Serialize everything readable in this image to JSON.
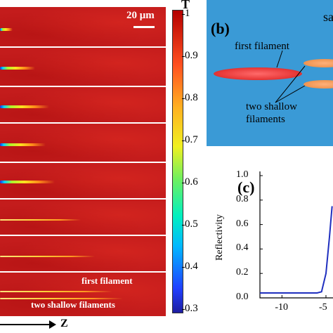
{
  "panel_a": {
    "scale_bar": "20 μm",
    "annotation_first": "first filament",
    "annotation_shallow": "two shallow filaments",
    "axis_label": "Z",
    "colorbar_title": "T",
    "colorbar_ticks": [
      "1",
      "0.9",
      "0.8",
      "0.7",
      "0.6",
      "0.5",
      "0.4",
      "0.3"
    ]
  },
  "panel_b": {
    "label": "(b)",
    "corner_text": "sa",
    "first_filament": "first filament",
    "two_shallow_line1": "two shallow",
    "two_shallow_line2": "filaments"
  },
  "panel_c": {
    "label": "(c)",
    "ylabel": "Reflectivity",
    "yticks": [
      "1.0",
      "0.8",
      "0.6",
      "0.4",
      "0.2",
      "0.0"
    ],
    "xticks": [
      "-10",
      "-5"
    ]
  },
  "chart_data": {
    "type": "line",
    "ylabel": "Reflectivity",
    "ylim": [
      0.0,
      1.0
    ],
    "series": [
      {
        "x": [
          -12.5,
          -10,
          -8,
          -6,
          -5.5,
          -5,
          -4.6,
          -4.3
        ],
        "y": [
          0.04,
          0.04,
          0.04,
          0.04,
          0.05,
          0.2,
          0.5,
          0.75
        ]
      }
    ],
    "xlim": [
      -12.5,
      -4.2
    ]
  }
}
